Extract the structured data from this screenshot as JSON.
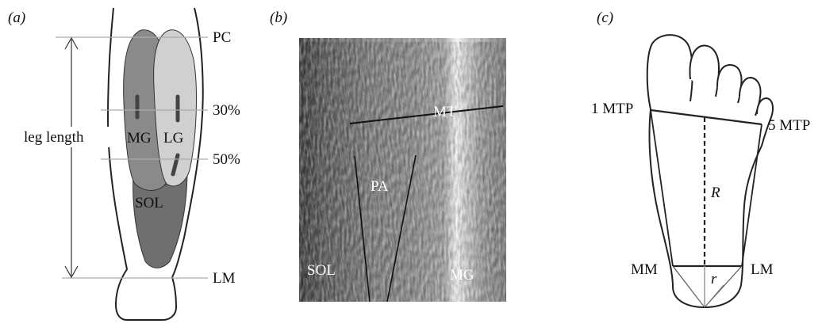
{
  "panels": {
    "a": {
      "tag": "(a)",
      "labels": {
        "pc": "PC",
        "p30": "30%",
        "p50": "50%",
        "lm": "LM",
        "leg_length": "leg length",
        "mg": "MG",
        "lg": "LG",
        "sol": "SOL"
      }
    },
    "b": {
      "tag": "(b)",
      "labels": {
        "mt": "MT",
        "pa": "PA",
        "sol": "SOL",
        "mg": "MG"
      }
    },
    "c": {
      "tag": "(c)",
      "labels": {
        "mtp1": "1 MTP",
        "mtp5": "5 MTP",
        "R": "R",
        "r": "r",
        "mm": "MM",
        "lm": "LM"
      }
    }
  },
  "colors": {
    "mg_muscle": "#8a8a8a",
    "lg_muscle": "#cfcfcf",
    "sol_muscle": "#6f6f6f",
    "outline": "#222222",
    "guide_line": "#aaaaaa"
  }
}
